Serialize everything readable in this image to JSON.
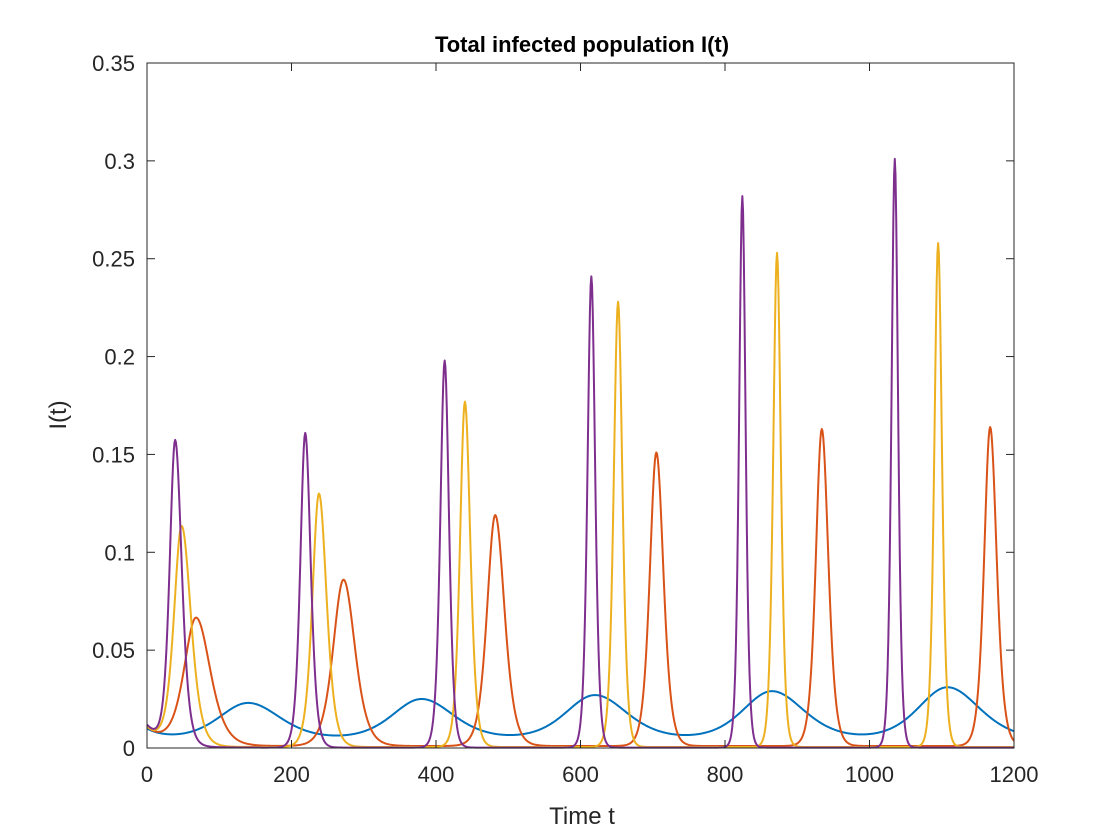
{
  "chart_data": {
    "type": "line",
    "title": "Total infected population I(t)",
    "xlabel": "Time t",
    "ylabel": "I(t)",
    "xlim": [
      0,
      1200
    ],
    "ylim": [
      0,
      0.35
    ],
    "grid": false,
    "x_ticks": [
      0,
      200,
      400,
      600,
      800,
      1000,
      1200
    ],
    "x_tick_labels": [
      "0",
      "200",
      "400",
      "600",
      "800",
      "1000",
      "1200"
    ],
    "y_ticks": [
      0,
      0.05,
      0.1,
      0.15,
      0.2,
      0.25,
      0.3,
      0.35
    ],
    "y_tick_labels": [
      "0",
      "0.05",
      "0.1",
      "0.15",
      "0.2",
      "0.25",
      "0.3",
      "0.35"
    ],
    "series": [
      {
        "name": "series-1",
        "color": "#0072BD",
        "baseline": 0.004,
        "start_value": 0.01,
        "peaks": [
          {
            "t": 140,
            "value": 0.023,
            "width_left": 55,
            "width_right": 60
          },
          {
            "t": 380,
            "value": 0.025,
            "width_left": 55,
            "width_right": 60
          },
          {
            "t": 620,
            "value": 0.027,
            "width_left": 55,
            "width_right": 60
          },
          {
            "t": 865,
            "value": 0.029,
            "width_left": 55,
            "width_right": 60
          },
          {
            "t": 1108,
            "value": 0.031,
            "width_left": 55,
            "width_right": 60
          }
        ]
      },
      {
        "name": "series-2",
        "color": "#D95319",
        "baseline": 0.001,
        "start_value": 0.011,
        "peaks": [
          {
            "t": 68,
            "value": 0.066,
            "width_left": 22,
            "width_right": 26
          },
          {
            "t": 272,
            "value": 0.086,
            "width_left": 19,
            "width_right": 21
          },
          {
            "t": 482,
            "value": 0.119,
            "width_left": 15,
            "width_right": 17
          },
          {
            "t": 705,
            "value": 0.151,
            "width_left": 12,
            "width_right": 13
          },
          {
            "t": 934,
            "value": 0.163,
            "width_left": 11,
            "width_right": 12
          },
          {
            "t": 1167,
            "value": 0.164,
            "width_left": 11,
            "width_right": 12
          }
        ]
      },
      {
        "name": "series-3",
        "color": "#EDB120",
        "baseline": 0.0005,
        "start_value": 0.011,
        "peaks": [
          {
            "t": 48,
            "value": 0.112,
            "width_left": 14,
            "width_right": 17
          },
          {
            "t": 238,
            "value": 0.13,
            "width_left": 12,
            "width_right": 14
          },
          {
            "t": 440,
            "value": 0.177,
            "width_left": 9,
            "width_right": 10
          },
          {
            "t": 652,
            "value": 0.228,
            "width_left": 8,
            "width_right": 8
          },
          {
            "t": 872,
            "value": 0.253,
            "width_left": 7,
            "width_right": 7
          },
          {
            "t": 1095,
            "value": 0.258,
            "width_left": 7,
            "width_right": 7
          }
        ]
      },
      {
        "name": "series-4",
        "color": "#7E2F8E",
        "baseline": 0.0002,
        "start_value": 0.012,
        "peaks": [
          {
            "t": 39,
            "value": 0.155,
            "width_left": 10,
            "width_right": 12
          },
          {
            "t": 219,
            "value": 0.161,
            "width_left": 9,
            "width_right": 10
          },
          {
            "t": 412,
            "value": 0.198,
            "width_left": 8,
            "width_right": 8
          },
          {
            "t": 615,
            "value": 0.241,
            "width_left": 7,
            "width_right": 7
          },
          {
            "t": 824,
            "value": 0.282,
            "width_left": 6,
            "width_right": 6
          },
          {
            "t": 1035,
            "value": 0.301,
            "width_left": 6,
            "width_right": 6
          }
        ]
      }
    ]
  }
}
